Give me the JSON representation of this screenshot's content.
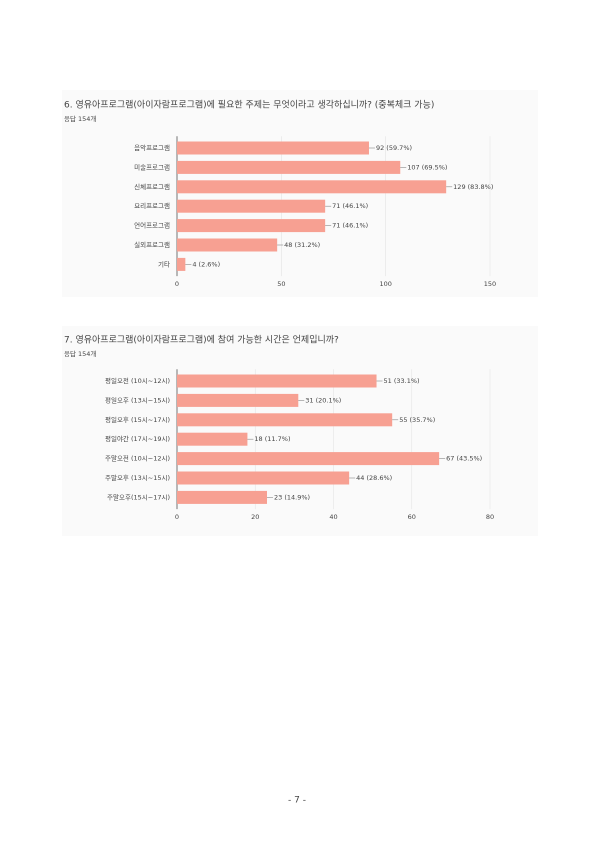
{
  "chart_data": [
    {
      "type": "barh",
      "title": "6. 영유아프로그램(아이자람프로그램)에 필요한 주제는 무엇이라고 생각하십니까? (중복체크 가능)",
      "subtitle": "응답 154개",
      "categories": [
        "음악프로그램",
        "미술프로그램",
        "신체프로그램",
        "요리프로그램",
        "언어프로그램",
        "실외프로그램",
        "기타"
      ],
      "values": [
        92,
        107,
        129,
        71,
        71,
        48,
        4
      ],
      "value_labels": [
        "92 (59.7%)",
        "107 (69.5%)",
        "129 (83.8%)",
        "71 (46.1%)",
        "71 (46.1%)",
        "48 (31.2%)",
        "4 (2.6%)"
      ],
      "color": "#f7a092",
      "xlim": [
        0,
        150
      ],
      "xticks": [
        0,
        50,
        100,
        150
      ],
      "grid": true
    },
    {
      "type": "barh",
      "title": "7. 영유아프로그램(아이자람프로그램)에 참여 가능한 시간은 언제입니까?",
      "subtitle": "응답 154개",
      "categories": [
        "평일오전 (10시~12시)",
        "평일오후 (13시~15시)",
        "평일오후 (15시~17시)",
        "평일야간 (17시~19시)",
        "주말오전 (10시~12시)",
        "주말오후 (13시~15시)",
        "주말오후(15시~17시)"
      ],
      "values": [
        51,
        31,
        55,
        18,
        67,
        44,
        23
      ],
      "value_labels": [
        "51 (33.1%)",
        "31 (20.1%)",
        "55 (35.7%)",
        "18 (11.7%)",
        "67 (43.5%)",
        "44 (28.6%)",
        "23 (14.9%)"
      ],
      "color": "#f7a092",
      "xlim": [
        0,
        80
      ],
      "xticks": [
        0,
        20,
        40,
        60,
        80
      ],
      "grid": true
    }
  ],
  "footer": {
    "page": "- 7 -"
  }
}
